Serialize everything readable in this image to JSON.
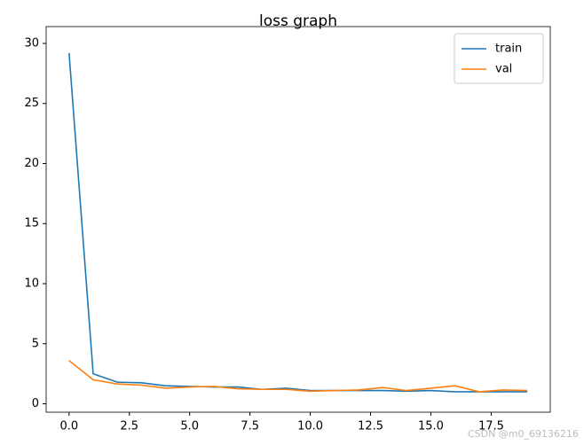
{
  "chart_data": {
    "type": "line",
    "title": "loss graph",
    "x": [
      0,
      1,
      2,
      3,
      4,
      5,
      6,
      7,
      8,
      9,
      10,
      11,
      12,
      13,
      14,
      15,
      16,
      17,
      18,
      19
    ],
    "series": [
      {
        "name": "train",
        "color": "#1f77b4",
        "values": [
          29.2,
          2.5,
          1.8,
          1.75,
          1.5,
          1.45,
          1.4,
          1.4,
          1.2,
          1.3,
          1.1,
          1.1,
          1.1,
          1.1,
          1.05,
          1.1,
          1.0,
          1.0,
          1.0,
          1.0
        ]
      },
      {
        "name": "val",
        "color": "#ff7f0e",
        "values": [
          3.6,
          2.0,
          1.65,
          1.55,
          1.3,
          1.4,
          1.45,
          1.25,
          1.2,
          1.2,
          1.05,
          1.1,
          1.15,
          1.35,
          1.1,
          1.3,
          1.5,
          1.0,
          1.15,
          1.1
        ]
      }
    ],
    "xlim": [
      -0.95,
      19.95
    ],
    "xticks": [
      {
        "value": 0,
        "label": "0.0"
      },
      {
        "value": 2.5,
        "label": "2.5"
      },
      {
        "value": 5,
        "label": "5.0"
      },
      {
        "value": 7.5,
        "label": "7.5"
      },
      {
        "value": 10,
        "label": "10.0"
      },
      {
        "value": 12.5,
        "label": "12.5"
      },
      {
        "value": 15,
        "label": "15.0"
      },
      {
        "value": 17.5,
        "label": "17.5"
      }
    ],
    "ylim": [
      -0.7,
      31.4
    ],
    "yticks": [
      0,
      5,
      10,
      15,
      20,
      25,
      30
    ],
    "grid": false,
    "legend": "upper-right",
    "watermark": "CSDN @m0_69136216"
  }
}
